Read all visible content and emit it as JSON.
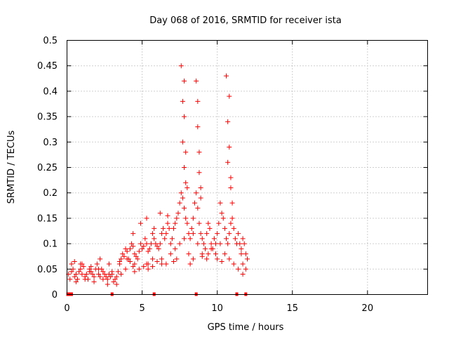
{
  "chart_data": {
    "type": "scatter",
    "title": "Day 068 of 2016, SRMTID for receiver ista",
    "xlabel": "GPS time / hours",
    "ylabel": "SRMTID / TECUs",
    "xlim": [
      0,
      24
    ],
    "ylim": [
      0,
      0.5
    ],
    "x_ticks": [
      0,
      5,
      10,
      15,
      20
    ],
    "x_tick_labels": [
      "0",
      "5",
      "10",
      "15",
      "20"
    ],
    "y_ticks": [
      0,
      0.05,
      0.1,
      0.15,
      0.2,
      0.25,
      0.3,
      0.35,
      0.4,
      0.45,
      0.5
    ],
    "y_tick_labels": [
      "0",
      "0.05",
      "0.1",
      "0.15",
      "0.2",
      "0.25",
      "0.3",
      "0.35",
      "0.4",
      "0.45",
      "0.5"
    ],
    "grid": true,
    "marker": "+",
    "color": "#ff0000",
    "series": [
      {
        "name": "SRMTID",
        "x": [
          0.1,
          0.2,
          0.3,
          0.4,
          0.5,
          0.6,
          0.7,
          0.8,
          0.9,
          1.0,
          1.1,
          1.2,
          1.3,
          1.4,
          1.5,
          1.6,
          1.7,
          1.8,
          1.9,
          2.0,
          2.1,
          2.2,
          2.3,
          2.4,
          2.5,
          2.6,
          2.7,
          2.8,
          2.9,
          3.0,
          3.1,
          3.2,
          3.3,
          3.4,
          3.5,
          3.6,
          3.7,
          3.8,
          3.9,
          4.0,
          4.1,
          4.2,
          4.3,
          4.4,
          4.5,
          4.6,
          4.7,
          4.8,
          4.9,
          5.0,
          5.1,
          5.2,
          5.3,
          5.4,
          5.5,
          5.6,
          5.7,
          5.8,
          5.9,
          6.0,
          6.1,
          6.2,
          6.3,
          6.4,
          6.5,
          6.6,
          6.7,
          6.8,
          6.9,
          7.0,
          7.1,
          7.2,
          7.3,
          7.4,
          7.5,
          7.6,
          7.7,
          7.8,
          7.9,
          8.0,
          8.1,
          8.2,
          8.3,
          8.4,
          8.5,
          8.6,
          8.7,
          8.8,
          8.9,
          9.0,
          9.1,
          9.2,
          9.3,
          9.4,
          9.5,
          9.6,
          9.7,
          9.8,
          9.9,
          10.0,
          10.1,
          10.2,
          10.3,
          10.4,
          10.5,
          10.6,
          10.7,
          10.8,
          10.9,
          11.0,
          11.1,
          11.2,
          11.3,
          11.4,
          11.5,
          11.6,
          11.7,
          11.8,
          11.9,
          12.0,
          0.3,
          0.6,
          0.9,
          1.2,
          1.5,
          1.8,
          2.1,
          2.4,
          2.7,
          3.0,
          3.3,
          3.6,
          3.9,
          4.2,
          4.5,
          4.8,
          5.1,
          5.4,
          5.7,
          6.0,
          6.3,
          6.6,
          6.9,
          7.2,
          7.5,
          7.8,
          8.1,
          8.4,
          8.7,
          9.0,
          9.3,
          9.6,
          9.9,
          10.2,
          10.5,
          10.8,
          11.1,
          11.4,
          11.7,
          0.5,
          1.0,
          1.6,
          2.2,
          2.8,
          3.5,
          4.0,
          4.4,
          4.9,
          5.3,
          5.8,
          6.2,
          6.7,
          7.6,
          7.7,
          7.7,
          7.8,
          7.8,
          7.8,
          7.9,
          7.9,
          8.0,
          8.6,
          8.7,
          8.7,
          8.8,
          8.8,
          8.9,
          8.9,
          10.6,
          10.7,
          10.7,
          10.8,
          10.8,
          10.9,
          10.9,
          11.0,
          4.4,
          4.5,
          5.3,
          5.4,
          5.7,
          6.3,
          7.1,
          7.3,
          8.2,
          8.4,
          9.0,
          9.4,
          10.0,
          10.3,
          11.6,
          11.7,
          11.9
        ],
        "y": [
          0.04,
          0.03,
          0.045,
          0.05,
          0.035,
          0.04,
          0.03,
          0.045,
          0.05,
          0.04,
          0.055,
          0.035,
          0.04,
          0.03,
          0.05,
          0.045,
          0.04,
          0.035,
          0.05,
          0.06,
          0.04,
          0.035,
          0.05,
          0.045,
          0.04,
          0.035,
          0.03,
          0.04,
          0.035,
          0.04,
          0.025,
          0.03,
          0.035,
          0.045,
          0.06,
          0.07,
          0.08,
          0.075,
          0.09,
          0.085,
          0.07,
          0.09,
          0.1,
          0.095,
          0.08,
          0.075,
          0.07,
          0.085,
          0.1,
          0.09,
          0.095,
          0.11,
          0.1,
          0.085,
          0.09,
          0.1,
          0.12,
          0.11,
          0.1,
          0.095,
          0.09,
          0.1,
          0.12,
          0.13,
          0.11,
          0.12,
          0.14,
          0.13,
          0.1,
          0.11,
          0.13,
          0.14,
          0.15,
          0.16,
          0.18,
          0.2,
          0.19,
          0.17,
          0.15,
          0.14,
          0.12,
          0.11,
          0.13,
          0.15,
          0.18,
          0.2,
          0.17,
          0.14,
          0.12,
          0.11,
          0.1,
          0.09,
          0.12,
          0.14,
          0.13,
          0.1,
          0.09,
          0.11,
          0.1,
          0.12,
          0.14,
          0.18,
          0.16,
          0.15,
          0.13,
          0.11,
          0.1,
          0.12,
          0.14,
          0.15,
          0.13,
          0.11,
          0.1,
          0.12,
          0.1,
          0.09,
          0.11,
          0.1,
          0.08,
          0.07,
          0.06,
          0.025,
          0.06,
          0.03,
          0.045,
          0.025,
          0.05,
          0.03,
          0.02,
          0.045,
          0.02,
          0.04,
          0.05,
          0.065,
          0.06,
          0.05,
          0.055,
          0.06,
          0.07,
          0.065,
          0.07,
          0.06,
          0.08,
          0.09,
          0.1,
          0.11,
          0.08,
          0.12,
          0.1,
          0.08,
          0.07,
          0.09,
          0.08,
          0.1,
          0.08,
          0.07,
          0.06,
          0.05,
          0.06,
          0.065,
          0.06,
          0.055,
          0.07,
          0.06,
          0.065,
          0.07,
          0.12,
          0.14,
          0.15,
          0.13,
          0.16,
          0.155,
          0.45,
          0.38,
          0.3,
          0.42,
          0.25,
          0.35,
          0.28,
          0.22,
          0.21,
          0.42,
          0.38,
          0.33,
          0.28,
          0.24,
          0.21,
          0.19,
          0.43,
          0.34,
          0.26,
          0.39,
          0.29,
          0.23,
          0.21,
          0.18,
          0.055,
          0.045,
          0.06,
          0.05,
          0.055,
          0.06,
          0.065,
          0.07,
          0.06,
          0.07,
          0.075,
          0.08,
          0.07,
          0.065,
          0.08,
          0.04,
          0.05
        ]
      }
    ],
    "rug_x": [
      0.05,
      0.15,
      0.25,
      0.3,
      3.0,
      5.8,
      8.6,
      11.3,
      11.9
    ]
  }
}
